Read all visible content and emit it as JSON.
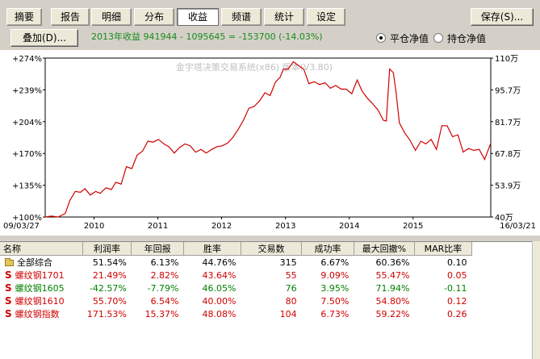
{
  "tabs": [
    "摘要",
    "报告",
    "明细",
    "分布",
    "收益",
    "频谱",
    "统计",
    "设定"
  ],
  "save_label": "保存(S)...",
  "overlay_label": "叠加(D)...",
  "summary_formula": "2013年收益 941944 - 1095645 = -153700 (-14.03%)",
  "radio": {
    "options": [
      "平仓净值",
      "持仓净值"
    ],
    "selected": "平仓净值"
  },
  "chart_data": {
    "type": "line",
    "watermark": "金宇塔决策交易系统(x86) 版本(V3.80)",
    "x_start_label": "09/03/27",
    "x_end_label": "16/03/21",
    "x_ticks": [
      "2010",
      "2011",
      "2012",
      "2013",
      "2014",
      "2015"
    ],
    "y_left_ticks": [
      "+274%",
      "+239%",
      "+204%",
      "+170%",
      "+135%",
      "+100%"
    ],
    "y_right_ticks": [
      "110万",
      "95.7万",
      "81.7万",
      "67.8万",
      "53.9万",
      "40万"
    ],
    "ylim_percent": [
      100,
      274
    ],
    "ylim_value_wan": [
      40,
      110
    ],
    "color": "#d00000",
    "series": [
      {
        "x": [
          "2009-03-27",
          "2009-05-01",
          "2009-06-10",
          "2009-07-20",
          "2009-08-15",
          "2009-09-15",
          "2009-10-15",
          "2009-11-10",
          "2009-12-10",
          "2010-01-10",
          "2010-02-05",
          "2010-03-10",
          "2010-04-10",
          "2010-05-05",
          "2010-06-05",
          "2010-07-05",
          "2010-08-05",
          "2010-09-05",
          "2010-10-05",
          "2010-11-05",
          "2010-12-05",
          "2011-01-05",
          "2011-02-05",
          "2011-03-05",
          "2011-04-05",
          "2011-05-05",
          "2011-06-05",
          "2011-07-05",
          "2011-08-05",
          "2011-09-05",
          "2011-10-05",
          "2011-11-05",
          "2011-12-05",
          "2012-01-05",
          "2012-02-05",
          "2012-03-05",
          "2012-04-05",
          "2012-05-05",
          "2012-06-05",
          "2012-07-05",
          "2012-08-05",
          "2012-09-05",
          "2012-10-05",
          "2012-11-05",
          "2012-12-01",
          "2012-12-20",
          "2013-01-15",
          "2013-02-15",
          "2013-03-15",
          "2013-04-15",
          "2013-05-15",
          "2013-06-15",
          "2013-07-15",
          "2013-08-15",
          "2013-09-15",
          "2013-10-15",
          "2013-11-15",
          "2013-12-15",
          "2014-01-15",
          "2014-02-15",
          "2014-03-15",
          "2014-04-15",
          "2014-05-15",
          "2014-06-15",
          "2014-07-15",
          "2014-08-01",
          "2014-08-20",
          "2014-09-10",
          "2014-09-25",
          "2014-10-15",
          "2014-11-15",
          "2014-12-15",
          "2015-01-15",
          "2015-02-15",
          "2015-03-15",
          "2015-04-15",
          "2015-05-15",
          "2015-06-15",
          "2015-07-15",
          "2015-08-15",
          "2015-09-15",
          "2015-10-15",
          "2015-11-15",
          "2015-12-15",
          "2016-01-15",
          "2016-02-15",
          "2016-03-21"
        ],
        "y": [
          100,
          101,
          100,
          104,
          118,
          128,
          127,
          131,
          124,
          128,
          126,
          132,
          130,
          138,
          136,
          155,
          153,
          168,
          172,
          183,
          182,
          185,
          180,
          177,
          170,
          176,
          180,
          178,
          171,
          174,
          170,
          174,
          177,
          178,
          181,
          187,
          196,
          206,
          219,
          221,
          227,
          236,
          233,
          248,
          253,
          262,
          262,
          270,
          266,
          262,
          246,
          248,
          245,
          247,
          241,
          244,
          240,
          240,
          235,
          250,
          238,
          230,
          224,
          217,
          206,
          205,
          262,
          258,
          238,
          203,
          192,
          184,
          173,
          183,
          180,
          185,
          174,
          200,
          200,
          188,
          190,
          171,
          175,
          173,
          174,
          163,
          181
        ]
      }
    ]
  },
  "table": {
    "headers": [
      "名称",
      "利润率",
      "年回报",
      "胜率",
      "交易数",
      "成功率",
      "最大回撤%",
      "MAR比率"
    ],
    "rows": [
      {
        "name": "全部综合",
        "icon": "folder-icon",
        "values": [
          "51.54%",
          "6.13%",
          "44.76%",
          "315",
          "6.67%",
          "60.36%",
          "0.10"
        ],
        "color": "#000000"
      },
      {
        "name": "螺纹钢1701",
        "icon": "s-icon",
        "values": [
          "21.49%",
          "2.82%",
          "43.64%",
          "55",
          "9.09%",
          "55.47%",
          "0.05"
        ],
        "color": "#d00000"
      },
      {
        "name": "螺纹钢1605",
        "icon": "s-icon",
        "values": [
          "-42.57%",
          "-7.79%",
          "46.05%",
          "76",
          "3.95%",
          "71.94%",
          "-0.11"
        ],
        "color": "#008000"
      },
      {
        "name": "螺纹钢1610",
        "icon": "s-icon",
        "values": [
          "55.70%",
          "6.54%",
          "40.00%",
          "80",
          "7.50%",
          "54.80%",
          "0.12"
        ],
        "color": "#d00000"
      },
      {
        "name": "螺纹钢指数",
        "icon": "s-icon",
        "values": [
          "171.53%",
          "15.37%",
          "48.08%",
          "104",
          "6.73%",
          "59.22%",
          "0.26"
        ],
        "color": "#d00000"
      }
    ]
  }
}
